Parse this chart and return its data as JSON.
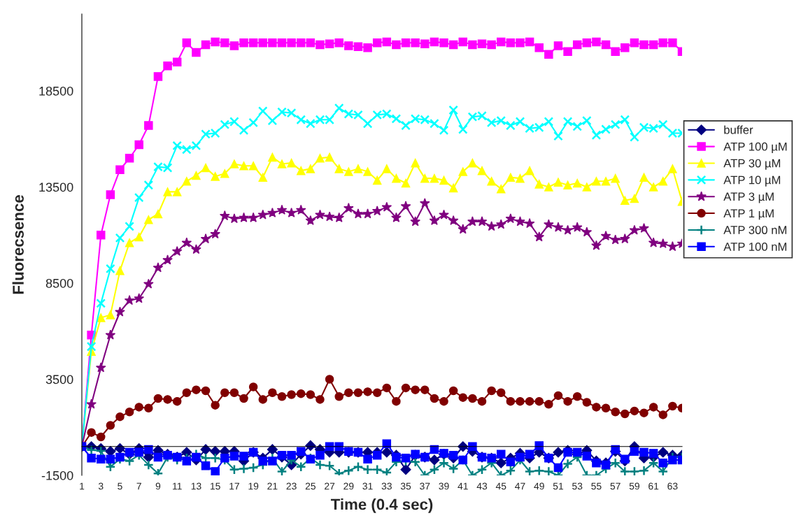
{
  "chart_data": {
    "type": "line",
    "xlabel": "Time (0.4 sec)",
    "ylabel": "Fluorecsence",
    "categories": [
      "1",
      null,
      "3",
      null,
      "5",
      null,
      "7",
      null,
      "9",
      null,
      "11",
      null,
      "13",
      null,
      "15",
      null,
      "17",
      null,
      "19",
      null,
      "21",
      null,
      "23",
      null,
      "25",
      null,
      "27",
      null,
      "29",
      null,
      "31",
      null,
      "33",
      null,
      "35",
      null,
      "37",
      null,
      "39",
      null,
      "41",
      null,
      "43",
      null,
      "45",
      null,
      "47",
      null,
      "49",
      null,
      "51",
      null,
      "53",
      null,
      "55",
      null,
      "57",
      null,
      "59",
      null,
      "61",
      null,
      "63",
      null
    ],
    "ylim": [
      -1500,
      22500
    ],
    "yticks": [
      -1500,
      3500,
      8500,
      13500,
      18500
    ],
    "grid": false,
    "legend": "right",
    "series": [
      {
        "name": "buffer",
        "color": "#000080",
        "marker": "diamond",
        "values": [
          0,
          0,
          -100,
          -250,
          -100,
          -400,
          -100,
          -550,
          -200,
          -400,
          -550,
          -300,
          -700,
          -150,
          -250,
          -250,
          -250,
          -750,
          -300,
          -600,
          -150,
          -550,
          -950,
          -400,
          50,
          -150,
          -300,
          -300,
          -300,
          -300,
          -300,
          -300,
          -300,
          -450,
          -1200,
          -450,
          -550,
          -700,
          -400,
          -600,
          0,
          -250,
          -550,
          -600,
          -850,
          -600,
          -350,
          -600,
          -300,
          -600,
          -300,
          -200,
          -400,
          -200,
          -750,
          -850,
          -250,
          -750,
          0,
          -600,
          -550,
          -300,
          -450,
          -450
        ]
      },
      {
        "name": "ATP 100 µM",
        "color": "#ff00ff",
        "marker": "square",
        "values": [
          0,
          5800,
          11000,
          13100,
          14400,
          15000,
          15700,
          16700,
          19250,
          19800,
          20000,
          21000,
          20500,
          20900,
          21050,
          21000,
          20850,
          21000,
          21000,
          21000,
          21000,
          21000,
          21000,
          21000,
          21000,
          20900,
          20950,
          21000,
          20850,
          20800,
          20750,
          21000,
          21050,
          20900,
          21000,
          21000,
          20950,
          21050,
          21000,
          20900,
          21050,
          20900,
          20950,
          20900,
          21050,
          21000,
          21000,
          21050,
          20750,
          20400,
          20850,
          20550,
          20900,
          21000,
          21050,
          20900,
          20550,
          20750,
          21000,
          20900,
          20900,
          21000,
          21000,
          20550
        ]
      },
      {
        "name": "ATP 30 µM",
        "color": "#ffff00",
        "marker": "triangle",
        "values": [
          0,
          4950,
          6700,
          6850,
          9150,
          10600,
          10900,
          11800,
          12100,
          13250,
          13250,
          13800,
          14100,
          14500,
          14050,
          14200,
          14700,
          14600,
          14600,
          14000,
          15050,
          14700,
          14750,
          14350,
          14450,
          15000,
          15050,
          14450,
          14300,
          14450,
          14300,
          13850,
          14450,
          13950,
          13700,
          14750,
          13950,
          13950,
          13850,
          13450,
          14300,
          14750,
          14350,
          13800,
          13400,
          14000,
          13950,
          14350,
          13650,
          13500,
          13750,
          13600,
          13700,
          13500,
          13800,
          13800,
          13950,
          12800,
          12900,
          14000,
          13500,
          13800,
          14450,
          12750
        ]
      },
      {
        "name": "ATP 10 µM",
        "color": "#00ffff",
        "marker": "cross",
        "values": [
          0,
          5200,
          7450,
          9250,
          10850,
          11450,
          12950,
          13600,
          14550,
          14500,
          15650,
          15450,
          15650,
          16250,
          16300,
          16750,
          16900,
          16450,
          16850,
          17450,
          16950,
          17400,
          17350,
          17000,
          16800,
          17000,
          17000,
          17600,
          17300,
          17250,
          16800,
          17250,
          17300,
          17050,
          16700,
          17050,
          17000,
          16800,
          16450,
          17500,
          16500,
          17150,
          17200,
          16850,
          16950,
          16700,
          16900,
          16550,
          16600,
          16900,
          16150,
          16900,
          16650,
          16950,
          16200,
          16500,
          16750,
          17000,
          16100,
          16600,
          16550,
          16750,
          16300,
          16300
        ]
      },
      {
        "name": "ATP 3 µM",
        "color": "#800080",
        "marker": "star",
        "values": [
          0,
          2200,
          4100,
          5800,
          7000,
          7600,
          7700,
          8450,
          9300,
          9700,
          10150,
          10600,
          10250,
          10800,
          11050,
          12000,
          11850,
          11900,
          11900,
          12050,
          12150,
          12300,
          12150,
          12300,
          11750,
          12050,
          11950,
          11900,
          12400,
          12100,
          12100,
          12250,
          12450,
          11900,
          12500,
          11700,
          12650,
          11750,
          12050,
          11750,
          11300,
          11700,
          11700,
          11450,
          11550,
          11850,
          11700,
          11600,
          10900,
          11550,
          11400,
          11250,
          11400,
          11150,
          10450,
          10950,
          10750,
          10800,
          11250,
          11350,
          10600,
          10550,
          10400,
          10550
        ]
      },
      {
        "name": "ATP 1 µM",
        "color": "#800000",
        "marker": "circle",
        "values": [
          0,
          730,
          500,
          1100,
          1550,
          1800,
          2050,
          2000,
          2500,
          2450,
          2350,
          2800,
          2950,
          2900,
          2150,
          2800,
          2800,
          2500,
          3100,
          2450,
          2800,
          2600,
          2700,
          2750,
          2700,
          2450,
          3500,
          2600,
          2800,
          2800,
          2850,
          2800,
          3050,
          2350,
          3050,
          2950,
          2950,
          2500,
          2350,
          2900,
          2550,
          2500,
          2350,
          2900,
          2800,
          2350,
          2350,
          2350,
          2350,
          2200,
          2650,
          2350,
          2600,
          2300,
          2050,
          2000,
          1800,
          1700,
          1850,
          1750,
          2050,
          1650,
          2100,
          2000
        ]
      },
      {
        "name": "ATP 300 nM",
        "color": "#008080",
        "marker": "plus",
        "values": [
          0,
          -180,
          -230,
          -1050,
          -650,
          -750,
          -450,
          -950,
          -1400,
          -550,
          -700,
          -600,
          -400,
          -600,
          -600,
          -700,
          -1200,
          -1150,
          -1100,
          -950,
          -600,
          -1300,
          -700,
          -1050,
          -600,
          -950,
          -1000,
          -1400,
          -1250,
          -1050,
          -1200,
          -1200,
          -1350,
          -800,
          -750,
          -800,
          -1500,
          -1200,
          -850,
          -1150,
          -700,
          -1500,
          -1200,
          -850,
          -1500,
          -1250,
          -700,
          -1300,
          -1250,
          -1300,
          -1500,
          -900,
          -550,
          -1500,
          -1500,
          -1150,
          -850,
          -1300,
          -1300,
          -1250,
          -850,
          -1300,
          -550,
          -550
        ]
      },
      {
        "name": "ATP 100 nM",
        "color": "#0000ff",
        "marker": "square",
        "values": [
          0,
          -600,
          -650,
          -650,
          -550,
          -300,
          -300,
          -150,
          -550,
          -450,
          -550,
          -750,
          -550,
          -1000,
          -1300,
          -600,
          -500,
          -500,
          -300,
          -750,
          -750,
          -450,
          -450,
          -250,
          -650,
          -450,
          0,
          0,
          -250,
          -300,
          -650,
          -450,
          150,
          -550,
          -600,
          -400,
          -550,
          -150,
          -350,
          -450,
          -700,
          0,
          -550,
          -600,
          -400,
          -800,
          -550,
          -400,
          50,
          -600,
          -1100,
          -300,
          -300,
          -500,
          -850,
          -950,
          -150,
          -650,
          -250,
          -300,
          -350,
          -850,
          -700,
          -700
        ]
      }
    ]
  }
}
